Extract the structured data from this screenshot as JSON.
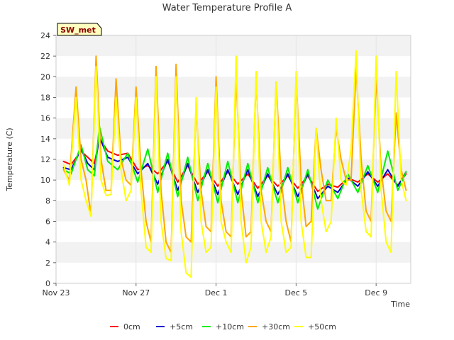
{
  "chart_data": {
    "type": "line",
    "title": "Water Temperature Profile A",
    "xlabel": "Time",
    "ylabel": "Temperature (C)",
    "badge": "SW_met",
    "x_unit": "date",
    "xlim": [
      "2023-11-23",
      "2023-12-10T18:00"
    ],
    "ylim": [
      0,
      24
    ],
    "yticks": [
      0,
      2,
      4,
      6,
      8,
      10,
      12,
      14,
      16,
      18,
      20,
      22,
      24
    ],
    "xticks": [
      {
        "value": "2023-11-23",
        "label": "Nov 23"
      },
      {
        "value": "2023-11-27",
        "label": "Nov 27"
      },
      {
        "value": "2023-12-01",
        "label": "Dec 1"
      },
      {
        "value": "2023-12-05",
        "label": "Dec 5"
      },
      {
        "value": "2023-12-09",
        "label": "Dec 9"
      }
    ],
    "grid": "alternating horizontal bands",
    "legend_position": "bottom",
    "series": [
      {
        "name": "0cm",
        "color": "#ff0000",
        "x": [
          "2023-11-23T09:00",
          "2023-11-23T18:00",
          "2023-11-24T06:00",
          "2023-11-24T14:00",
          "2023-11-24T22:00",
          "2023-11-25T04:00",
          "2023-11-25T14:00",
          "2023-11-26T02:00",
          "2023-11-26T14:00",
          "2023-11-27T02:00",
          "2023-11-27T14:00",
          "2023-11-28T02:00",
          "2023-11-28T14:00",
          "2023-11-29T02:00",
          "2023-11-29T14:00",
          "2023-11-30T02:00",
          "2023-11-30T14:00",
          "2023-12-01T02:00",
          "2023-12-01T14:00",
          "2023-12-02T02:00",
          "2023-12-02T14:00",
          "2023-12-03T02:00",
          "2023-12-03T14:00",
          "2023-12-04T02:00",
          "2023-12-04T14:00",
          "2023-12-05T02:00",
          "2023-12-05T14:00",
          "2023-12-06T02:00",
          "2023-12-06T14:00",
          "2023-12-07T02:00",
          "2023-12-07T14:00",
          "2023-12-08T02:00",
          "2023-12-08T14:00",
          "2023-12-09T02:00",
          "2023-12-09T14:00",
          "2023-12-10T02:00",
          "2023-12-10T12:00"
        ],
        "y": [
          11.8,
          11.5,
          12.8,
          12.2,
          11.6,
          14.0,
          12.8,
          12.4,
          12.6,
          11.0,
          11.4,
          10.6,
          11.8,
          9.8,
          11.4,
          9.6,
          10.8,
          9.4,
          10.8,
          9.6,
          10.6,
          9.2,
          10.4,
          9.4,
          10.4,
          9.2,
          10.4,
          8.9,
          9.6,
          9.3,
          10.2,
          9.8,
          10.6,
          9.8,
          10.6,
          9.5,
          10.6
        ]
      },
      {
        "name": "+5cm",
        "color": "#0000cc",
        "x": [
          "2023-11-23T09:00",
          "2023-11-23T18:00",
          "2023-11-24T06:00",
          "2023-11-24T14:00",
          "2023-11-24T22:00",
          "2023-11-25T04:00",
          "2023-11-25T14:00",
          "2023-11-26T02:00",
          "2023-11-26T14:00",
          "2023-11-27T02:00",
          "2023-11-27T14:00",
          "2023-11-28T02:00",
          "2023-11-28T14:00",
          "2023-11-29T02:00",
          "2023-11-29T14:00",
          "2023-11-30T02:00",
          "2023-11-30T14:00",
          "2023-12-01T02:00",
          "2023-12-01T14:00",
          "2023-12-02T02:00",
          "2023-12-02T14:00",
          "2023-12-03T02:00",
          "2023-12-03T14:00",
          "2023-12-04T02:00",
          "2023-12-04T14:00",
          "2023-12-05T02:00",
          "2023-12-05T14:00",
          "2023-12-06T02:00",
          "2023-12-06T14:00",
          "2023-12-07T02:00",
          "2023-12-07T14:00",
          "2023-12-08T02:00",
          "2023-12-08T14:00",
          "2023-12-09T02:00",
          "2023-12-09T14:00",
          "2023-12-10T02:00",
          "2023-12-10T12:00"
        ],
        "y": [
          11.2,
          11.0,
          13.0,
          11.6,
          11.0,
          14.2,
          12.2,
          11.8,
          12.2,
          10.6,
          11.6,
          9.6,
          12.0,
          9.0,
          11.6,
          8.8,
          11.0,
          8.6,
          11.0,
          8.6,
          11.0,
          8.4,
          10.6,
          8.6,
          10.6,
          8.4,
          10.6,
          8.2,
          9.4,
          8.8,
          10.2,
          9.4,
          10.8,
          9.4,
          11.0,
          9.4,
          10.8
        ]
      },
      {
        "name": "+10cm",
        "color": "#00ee00",
        "x": [
          "2023-11-23T09:00",
          "2023-11-23T18:00",
          "2023-11-24T06:00",
          "2023-11-24T14:00",
          "2023-11-24T22:00",
          "2023-11-25T04:00",
          "2023-11-25T14:00",
          "2023-11-26T02:00",
          "2023-11-26T14:00",
          "2023-11-27T02:00",
          "2023-11-27T14:00",
          "2023-11-28T02:00",
          "2023-11-28T14:00",
          "2023-11-29T02:00",
          "2023-11-29T14:00",
          "2023-11-30T02:00",
          "2023-11-30T14:00",
          "2023-12-01T02:00",
          "2023-12-01T14:00",
          "2023-12-02T02:00",
          "2023-12-02T14:00",
          "2023-12-03T02:00",
          "2023-12-03T14:00",
          "2023-12-04T02:00",
          "2023-12-04T14:00",
          "2023-12-05T02:00",
          "2023-12-05T14:00",
          "2023-12-06T02:00",
          "2023-12-06T14:00",
          "2023-12-07T02:00",
          "2023-12-07T14:00",
          "2023-12-08T02:00",
          "2023-12-08T14:00",
          "2023-12-09T02:00",
          "2023-12-09T14:00",
          "2023-12-10T02:00",
          "2023-12-10T12:00"
        ],
        "y": [
          11.0,
          10.6,
          13.4,
          11.0,
          10.4,
          15.2,
          11.8,
          11.0,
          12.6,
          9.8,
          13.0,
          8.8,
          12.6,
          8.4,
          12.2,
          8.0,
          11.6,
          7.8,
          11.8,
          7.8,
          11.6,
          7.8,
          11.2,
          7.8,
          11.2,
          7.8,
          11.0,
          7.2,
          10.0,
          8.2,
          10.6,
          8.8,
          11.4,
          8.8,
          12.8,
          9.0,
          10.8
        ]
      },
      {
        "name": "+30cm",
        "color": "#ffa500",
        "x": [
          "2023-11-23T09:00",
          "2023-11-23T16:00",
          "2023-11-24T00:00",
          "2023-11-24T06:00",
          "2023-11-24T12:00",
          "2023-11-24T18:00",
          "2023-11-25T00:00",
          "2023-11-25T06:00",
          "2023-11-25T12:00",
          "2023-11-25T18:00",
          "2023-11-26T00:00",
          "2023-11-26T06:00",
          "2023-11-26T12:00",
          "2023-11-26T18:00",
          "2023-11-27T00:00",
          "2023-11-27T06:00",
          "2023-11-27T12:00",
          "2023-11-27T18:00",
          "2023-11-28T00:00",
          "2023-11-28T06:00",
          "2023-11-28T12:00",
          "2023-11-28T18:00",
          "2023-11-29T00:00",
          "2023-11-29T06:00",
          "2023-11-29T12:00",
          "2023-11-29T18:00",
          "2023-11-30T00:00",
          "2023-11-30T06:00",
          "2023-11-30T12:00",
          "2023-11-30T18:00",
          "2023-12-01T00:00",
          "2023-12-01T06:00",
          "2023-12-01T12:00",
          "2023-12-01T18:00",
          "2023-12-02T00:00",
          "2023-12-02T06:00",
          "2023-12-02T12:00",
          "2023-12-02T18:00",
          "2023-12-03T00:00",
          "2023-12-03T06:00",
          "2023-12-03T12:00",
          "2023-12-03T18:00",
          "2023-12-04T00:00",
          "2023-12-04T06:00",
          "2023-12-04T12:00",
          "2023-12-04T18:00",
          "2023-12-05T00:00",
          "2023-12-05T06:00",
          "2023-12-05T12:00",
          "2023-12-05T18:00",
          "2023-12-06T00:00",
          "2023-12-06T06:00",
          "2023-12-06T12:00",
          "2023-12-06T18:00",
          "2023-12-07T00:00",
          "2023-12-07T06:00",
          "2023-12-07T12:00",
          "2023-12-07T18:00",
          "2023-12-08T00:00",
          "2023-12-08T06:00",
          "2023-12-08T12:00",
          "2023-12-08T18:00",
          "2023-12-09T00:00",
          "2023-12-09T06:00",
          "2023-12-09T12:00",
          "2023-12-09T18:00",
          "2023-12-10T00:00",
          "2023-12-10T06:00",
          "2023-12-10T12:00"
        ],
        "y": [
          11.0,
          10.0,
          19.0,
          12.0,
          10.0,
          6.6,
          22.0,
          12.0,
          9.0,
          9.0,
          19.8,
          12.0,
          10.0,
          9.5,
          19.0,
          11.0,
          6.0,
          4.0,
          21.0,
          9.0,
          4.0,
          3.0,
          21.2,
          8.0,
          4.5,
          4.0,
          17.0,
          9.0,
          5.5,
          5.0,
          20.0,
          8.0,
          5.0,
          4.5,
          20.0,
          9.0,
          4.5,
          5.0,
          19.8,
          9.0,
          6.0,
          5.0,
          19.5,
          10.0,
          6.0,
          4.0,
          20.0,
          10.0,
          5.5,
          6.0,
          15.0,
          11.0,
          8.0,
          8.0,
          15.0,
          12.0,
          10.0,
          10.0,
          20.8,
          12.0,
          7.0,
          6.0,
          20.0,
          11.0,
          7.0,
          6.0,
          16.5,
          11.0,
          9.0
        ]
      },
      {
        "name": "+50cm",
        "color": "#ffff00",
        "x": [
          "2023-11-23T09:00",
          "2023-11-23T16:00",
          "2023-11-24T00:00",
          "2023-11-24T06:00",
          "2023-11-24T12:00",
          "2023-11-24T18:00",
          "2023-11-25T00:00",
          "2023-11-25T06:00",
          "2023-11-25T12:00",
          "2023-11-25T18:00",
          "2023-11-26T00:00",
          "2023-11-26T06:00",
          "2023-11-26T12:00",
          "2023-11-26T18:00",
          "2023-11-27T00:00",
          "2023-11-27T06:00",
          "2023-11-27T12:00",
          "2023-11-27T18:00",
          "2023-11-28T00:00",
          "2023-11-28T06:00",
          "2023-11-28T12:00",
          "2023-11-28T18:00",
          "2023-11-29T00:00",
          "2023-11-29T06:00",
          "2023-11-29T12:00",
          "2023-11-29T18:00",
          "2023-11-30T00:00",
          "2023-11-30T06:00",
          "2023-11-30T12:00",
          "2023-11-30T18:00",
          "2023-12-01T00:00",
          "2023-12-01T06:00",
          "2023-12-01T12:00",
          "2023-12-01T18:00",
          "2023-12-02T00:00",
          "2023-12-02T06:00",
          "2023-12-02T12:00",
          "2023-12-02T18:00",
          "2023-12-03T00:00",
          "2023-12-03T06:00",
          "2023-12-03T12:00",
          "2023-12-03T18:00",
          "2023-12-04T00:00",
          "2023-12-04T06:00",
          "2023-12-04T12:00",
          "2023-12-04T18:00",
          "2023-12-05T00:00",
          "2023-12-05T06:00",
          "2023-12-05T12:00",
          "2023-12-05T18:00",
          "2023-12-06T00:00",
          "2023-12-06T06:00",
          "2023-12-06T12:00",
          "2023-12-06T18:00",
          "2023-12-07T00:00",
          "2023-12-07T06:00",
          "2023-12-07T12:00",
          "2023-12-07T18:00",
          "2023-12-08T00:00",
          "2023-12-08T06:00",
          "2023-12-08T12:00",
          "2023-12-08T18:00",
          "2023-12-09T00:00",
          "2023-12-09T06:00",
          "2023-12-09T12:00",
          "2023-12-09T18:00",
          "2023-12-10T00:00",
          "2023-12-10T06:00",
          "2023-12-10T12:00"
        ],
        "y": [
          11.5,
          9.5,
          18.0,
          10.0,
          8.0,
          6.5,
          21.0,
          10.0,
          8.5,
          8.6,
          18.0,
          11.0,
          8.0,
          9.0,
          18.0,
          9.0,
          3.5,
          3.0,
          20.0,
          6.0,
          2.4,
          2.2,
          20.0,
          5.0,
          1.0,
          0.6,
          18.0,
          6.0,
          3.0,
          3.5,
          19.0,
          6.0,
          4.0,
          3.0,
          22.0,
          6.0,
          2.0,
          3.5,
          20.5,
          6.0,
          3.0,
          4.5,
          19.5,
          6.0,
          3.0,
          3.5,
          20.5,
          6.0,
          2.5,
          2.5,
          15.0,
          8.0,
          5.0,
          6.0,
          16.0,
          10.0,
          9.5,
          13.0,
          22.5,
          9.0,
          5.0,
          4.5,
          22.0,
          9.0,
          4.0,
          3.0,
          20.5,
          10.0,
          8.0
        ]
      }
    ]
  }
}
